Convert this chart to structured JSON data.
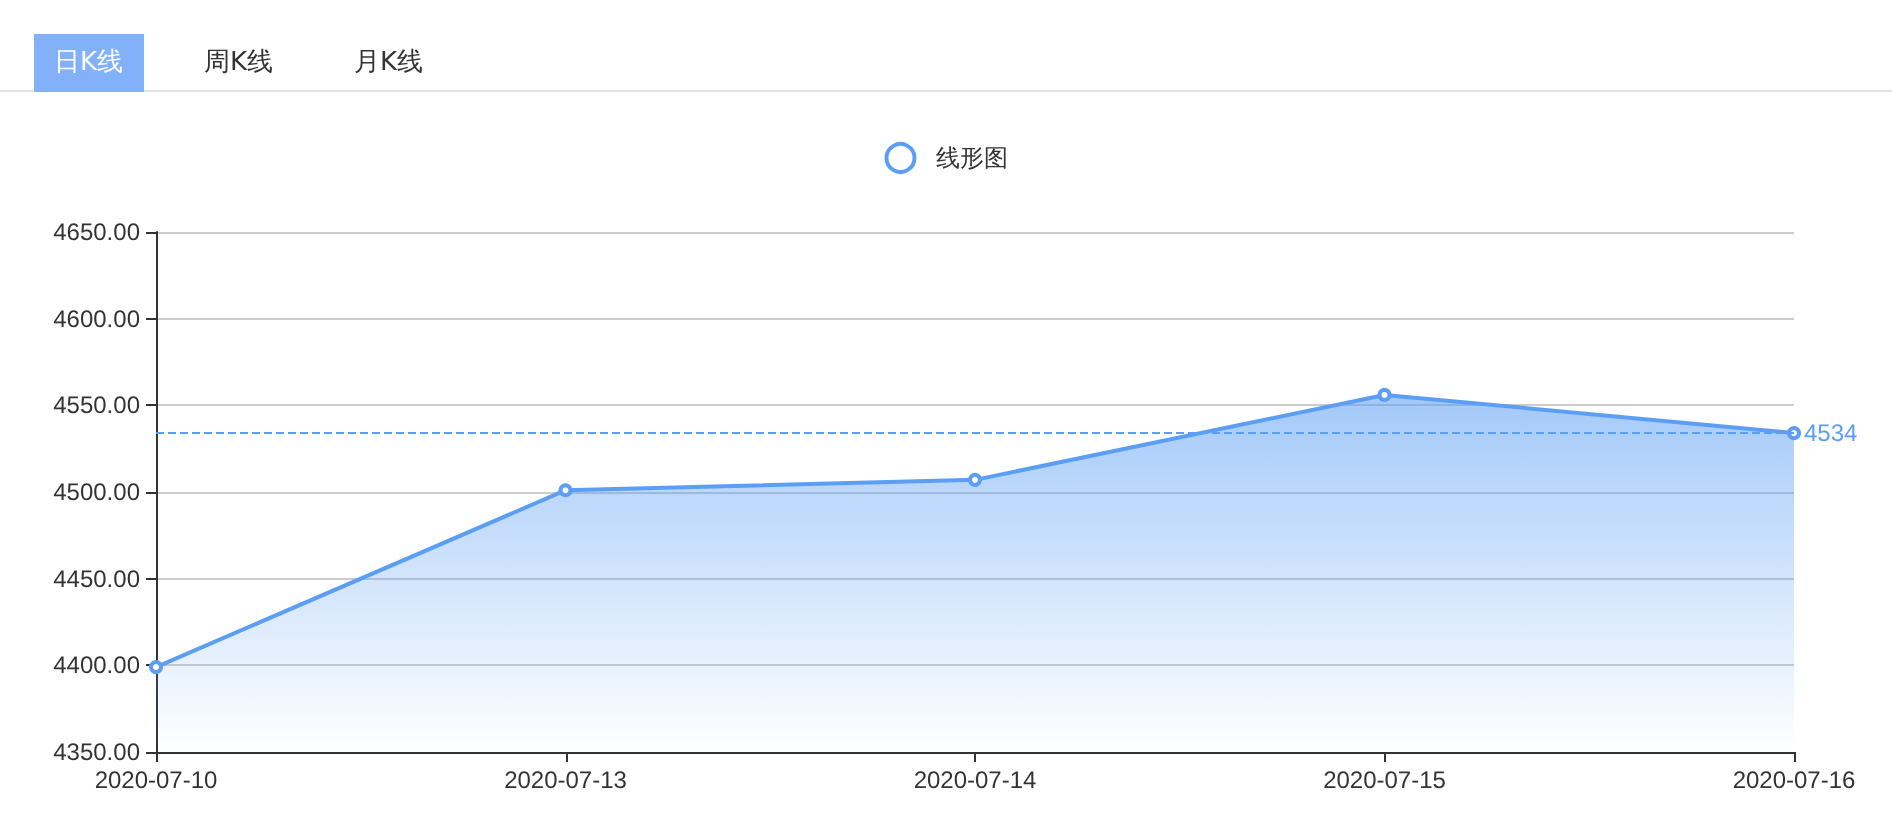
{
  "chart_data": {
    "type": "area",
    "annotations": [
      "日K线",
      "周K线",
      "月K线"
    ],
    "categories": [
      "2020-07-10",
      "2020-07-13",
      "2020-07-14",
      "2020-07-15",
      "2020-07-16"
    ],
    "series": [
      {
        "name": "线形图",
        "color": "#5b9ef4",
        "values": [
          4399,
          4501,
          4507,
          4556,
          4534
        ]
      }
    ],
    "ylim": [
      4350,
      4650
    ],
    "yticks": [
      {
        "value": 4350,
        "label": "4350.00"
      },
      {
        "value": 4400,
        "label": "4400.00"
      },
      {
        "value": 4450,
        "label": "4450.00"
      },
      {
        "value": 4500,
        "label": "4500.00"
      },
      {
        "value": 4550,
        "label": "4550.00"
      },
      {
        "value": 4600,
        "label": "4600.00"
      },
      {
        "value": 4650,
        "label": "4650.00"
      }
    ],
    "ref_lines": [
      {
        "axis": "y",
        "value": 4534,
        "label": "4534",
        "color": "#5b9ef4",
        "line_style": "dashed"
      }
    ],
    "grid": "y",
    "legend": "top",
    "marker": "circle",
    "line_style": "solid"
  }
}
